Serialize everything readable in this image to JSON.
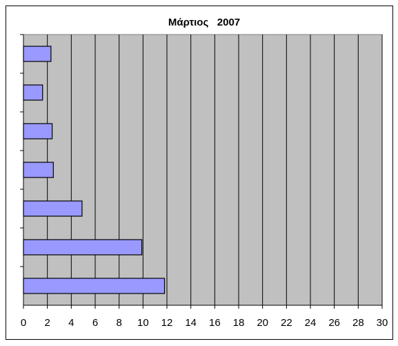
{
  "chart_data": {
    "type": "bar",
    "orientation": "horizontal",
    "title": "Μάρτιος   2007",
    "categories": [
      null,
      null,
      null,
      null,
      null,
      null,
      null
    ],
    "values": [
      2.3,
      1.6,
      2.4,
      2.5,
      4.9,
      9.9,
      11.8
    ],
    "color": "#9999ff",
    "plot_background": "#c0c0c0",
    "xlim": [
      0,
      30
    ],
    "xticks": [
      0,
      2,
      4,
      6,
      8,
      10,
      12,
      14,
      16,
      18,
      20,
      22,
      24,
      26,
      28,
      30
    ],
    "grid": true
  }
}
